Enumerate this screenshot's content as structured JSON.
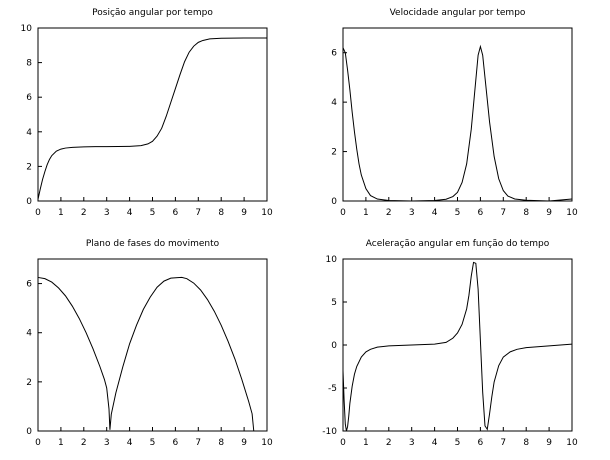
{
  "chart_data": [
    {
      "id": "pos",
      "type": "line",
      "title": "Posição angular por tempo",
      "xlabel": "",
      "ylabel": "",
      "xlim": [
        0,
        10
      ],
      "ylim": [
        0,
        10
      ],
      "x_ticks": [
        0,
        1,
        2,
        3,
        4,
        5,
        6,
        7,
        8,
        9,
        10
      ],
      "y_ticks": [
        0,
        2,
        4,
        6,
        8,
        10
      ],
      "grid": false,
      "series": [
        {
          "x": [
            0,
            0.1,
            0.2,
            0.3,
            0.4,
            0.5,
            0.6,
            0.8,
            1,
            1.2,
            1.5,
            2,
            2.5,
            3,
            3.5,
            4,
            4.5,
            4.8,
            5,
            5.2,
            5.4,
            5.6,
            5.8,
            6,
            6.2,
            6.4,
            6.6,
            6.8,
            7,
            7.2,
            7.5,
            8,
            9,
            10
          ],
          "y": [
            0.1,
            0.7,
            1.25,
            1.7,
            2.1,
            2.4,
            2.62,
            2.88,
            3.0,
            3.06,
            3.1,
            3.13,
            3.14,
            3.14,
            3.15,
            3.16,
            3.2,
            3.3,
            3.45,
            3.75,
            4.2,
            4.9,
            5.7,
            6.5,
            7.3,
            8.05,
            8.6,
            8.95,
            9.17,
            9.28,
            9.37,
            9.41,
            9.42,
            9.42
          ]
        }
      ]
    },
    {
      "id": "vel",
      "type": "line",
      "title": "Velocidade angular por tempo",
      "xlabel": "",
      "ylabel": "",
      "xlim": [
        0,
        10
      ],
      "ylim": [
        0,
        7
      ],
      "x_ticks": [
        0,
        1,
        2,
        3,
        4,
        5,
        6,
        7,
        8,
        9,
        10
      ],
      "y_ticks": [
        0,
        2,
        4,
        6
      ],
      "grid": false,
      "series": [
        {
          "x": [
            0,
            0.1,
            0.2,
            0.3,
            0.4,
            0.5,
            0.6,
            0.7,
            0.8,
            1,
            1.2,
            1.5,
            2,
            3,
            4,
            4.5,
            4.8,
            5,
            5.2,
            5.4,
            5.6,
            5.8,
            5.9,
            6,
            6.1,
            6.2,
            6.4,
            6.6,
            6.8,
            7,
            7.2,
            7.5,
            8,
            9,
            10
          ],
          "y": [
            6.2,
            6.0,
            5.3,
            4.5,
            3.6,
            2.8,
            2.1,
            1.5,
            1.05,
            0.5,
            0.22,
            0.08,
            0.02,
            0.0,
            0.02,
            0.07,
            0.18,
            0.35,
            0.75,
            1.5,
            2.9,
            4.9,
            5.9,
            6.25,
            5.9,
            5.0,
            3.2,
            1.8,
            0.9,
            0.42,
            0.2,
            0.08,
            0.03,
            0.0,
            0.08
          ]
        }
      ]
    },
    {
      "id": "phase",
      "type": "line",
      "title": "Plano de fases do movimento",
      "xlabel": "",
      "ylabel": "",
      "xlim": [
        0,
        10
      ],
      "ylim": [
        0,
        7
      ],
      "x_ticks": [
        0,
        1,
        2,
        3,
        4,
        5,
        6,
        7,
        8,
        9,
        10
      ],
      "y_ticks": [
        0,
        2,
        4,
        6
      ],
      "grid": false,
      "series": [
        {
          "x": [
            0,
            0.3,
            0.6,
            0.9,
            1.2,
            1.5,
            1.8,
            2.1,
            2.4,
            2.7,
            2.9,
            3.0,
            3.1,
            3.14,
            3.2,
            3.4,
            3.7,
            4.0,
            4.3,
            4.6,
            4.9,
            5.2,
            5.5,
            5.8,
            6.1,
            6.28,
            6.5,
            6.8,
            7.1,
            7.4,
            7.7,
            8.0,
            8.3,
            8.6,
            8.9,
            9.2,
            9.35,
            9.42
          ],
          "y": [
            6.25,
            6.2,
            6.06,
            5.82,
            5.5,
            5.08,
            4.58,
            4.0,
            3.35,
            2.63,
            2.1,
            1.75,
            0.9,
            0.05,
            0.68,
            1.55,
            2.6,
            3.55,
            4.3,
            4.95,
            5.45,
            5.85,
            6.1,
            6.22,
            6.24,
            6.25,
            6.2,
            6.02,
            5.74,
            5.35,
            4.87,
            4.3,
            3.65,
            2.93,
            2.1,
            1.2,
            0.7,
            0.02
          ]
        }
      ]
    },
    {
      "id": "acc",
      "type": "line",
      "title": "Aceleração angular em função do tempo",
      "xlabel": "",
      "ylabel": "",
      "xlim": [
        0,
        10
      ],
      "ylim": [
        -10,
        10
      ],
      "x_ticks": [
        0,
        1,
        2,
        3,
        4,
        5,
        6,
        7,
        8,
        9,
        10
      ],
      "y_ticks": [
        -10,
        -5,
        0,
        5,
        10
      ],
      "grid": false,
      "series": [
        {
          "x": [
            0,
            0.05,
            0.1,
            0.15,
            0.2,
            0.25,
            0.3,
            0.4,
            0.5,
            0.6,
            0.8,
            1.0,
            1.2,
            1.5,
            2,
            3,
            4,
            4.5,
            4.8,
            5.0,
            5.2,
            5.4,
            5.5,
            5.6,
            5.7,
            5.8,
            5.9,
            6.0,
            6.1,
            6.2,
            6.3,
            6.4,
            6.5,
            6.6,
            6.8,
            7.0,
            7.3,
            7.6,
            8,
            9,
            10
          ],
          "y": [
            -3,
            -6.5,
            -9.2,
            -10,
            -9.5,
            -8.3,
            -6.8,
            -4.8,
            -3.4,
            -2.5,
            -1.4,
            -0.8,
            -0.5,
            -0.25,
            -0.1,
            0.0,
            0.1,
            0.3,
            0.8,
            1.4,
            2.4,
            4.2,
            5.8,
            8.0,
            9.6,
            9.5,
            6.5,
            0.5,
            -5.5,
            -9.4,
            -9.8,
            -8.0,
            -6.0,
            -4.3,
            -2.4,
            -1.4,
            -0.8,
            -0.5,
            -0.3,
            -0.1,
            0.1
          ]
        }
      ]
    }
  ]
}
